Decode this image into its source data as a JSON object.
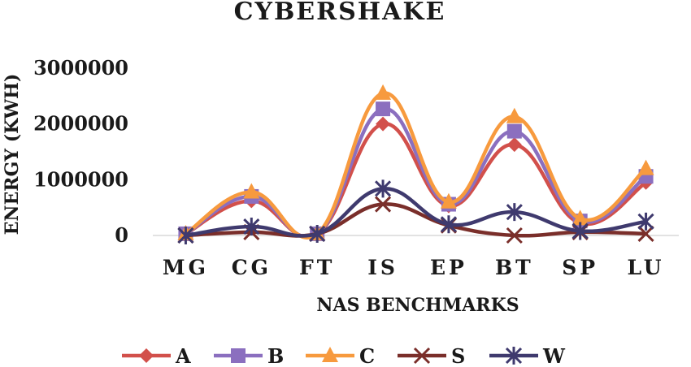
{
  "chart_data": {
    "type": "line",
    "title": "CYBERSHAKE",
    "xlabel": "NAS BENCHMARKS",
    "ylabel": "ENERGY (KWH)",
    "categories": [
      "MG",
      "CG",
      "FT",
      "IS",
      "EP",
      "BT",
      "SP",
      "LU"
    ],
    "ylim": [
      0,
      3000000
    ],
    "yticks": [
      0,
      1000000,
      2000000,
      3000000
    ],
    "ytick_labels": [
      "0",
      "1000000",
      "2000000",
      "3000000"
    ],
    "grid": false,
    "smooth": true,
    "legend_position": "bottom",
    "series": [
      {
        "name": "A",
        "color": "#D2504B",
        "marker": "diamond",
        "values": [
          30000,
          620000,
          30000,
          2000000,
          530000,
          1630000,
          220000,
          950000
        ]
      },
      {
        "name": "B",
        "color": "#8B6FBF",
        "marker": "square",
        "values": [
          30000,
          700000,
          30000,
          2270000,
          560000,
          1870000,
          260000,
          1060000
        ]
      },
      {
        "name": "C",
        "color": "#F79A3E",
        "marker": "triangle",
        "values": [
          30000,
          780000,
          30000,
          2550000,
          600000,
          2130000,
          300000,
          1200000
        ]
      },
      {
        "name": "S",
        "color": "#7A2E2A",
        "marker": "x",
        "values": [
          0,
          60000,
          30000,
          560000,
          180000,
          0,
          60000,
          30000
        ]
      },
      {
        "name": "W",
        "color": "#3F3A6E",
        "marker": "star",
        "values": [
          0,
          160000,
          30000,
          840000,
          200000,
          420000,
          80000,
          250000
        ]
      }
    ]
  }
}
